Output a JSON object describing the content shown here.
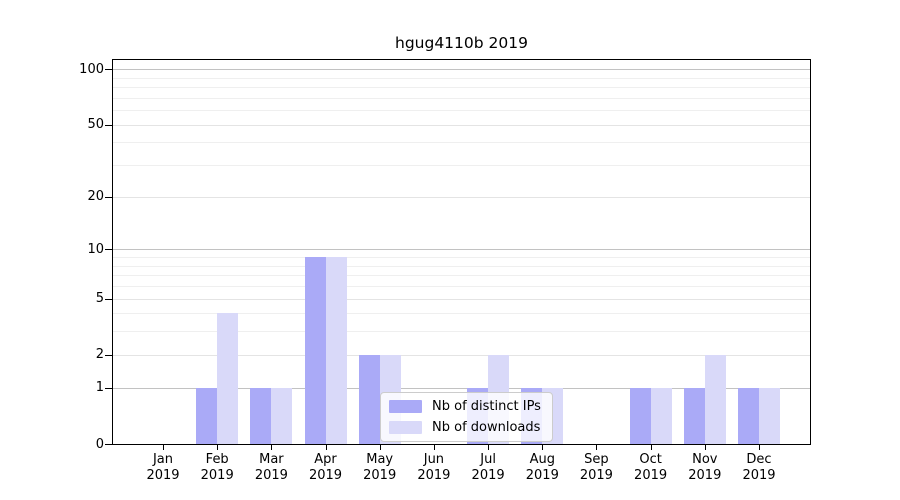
{
  "title": "hgug4110b 2019",
  "chart_data": {
    "type": "bar",
    "title": "hgug4110b 2019",
    "categories": [
      "Jan",
      "Feb",
      "Mar",
      "Apr",
      "May",
      "Jun",
      "Jul",
      "Aug",
      "Sep",
      "Oct",
      "Nov",
      "Dec"
    ],
    "year_label": "2019",
    "series": [
      {
        "name": "Nb of distinct IPs",
        "color": "#aaaaf7",
        "values": [
          0,
          1,
          1,
          9,
          2,
          0,
          1,
          1,
          0,
          1,
          1,
          1
        ]
      },
      {
        "name": "Nb of downloads",
        "color": "#d9d9f9",
        "values": [
          0,
          4,
          1,
          9,
          2,
          0,
          2,
          1,
          0,
          1,
          2,
          1
        ]
      }
    ],
    "yscale": "log1p",
    "ylim": [
      0,
      113
    ],
    "y_ticks": [
      0,
      1,
      2,
      5,
      10,
      20,
      50,
      100
    ],
    "y_decade_gridlines": [
      1,
      10,
      100
    ],
    "y_labeled_gridlines": [
      2,
      5,
      20,
      50
    ],
    "y_minor_gridlines": [
      3,
      4,
      6,
      7,
      8,
      9,
      30,
      40,
      60,
      70,
      80,
      90
    ],
    "grid": true,
    "legend_position": "lower center",
    "xlabel": "",
    "ylabel": ""
  },
  "colors": {
    "decade_grid": "#c2c2c2",
    "labeled_grid": "#e4e4e4",
    "minor_grid": "#efefef",
    "axis": "#000000",
    "background": "#ffffff"
  }
}
